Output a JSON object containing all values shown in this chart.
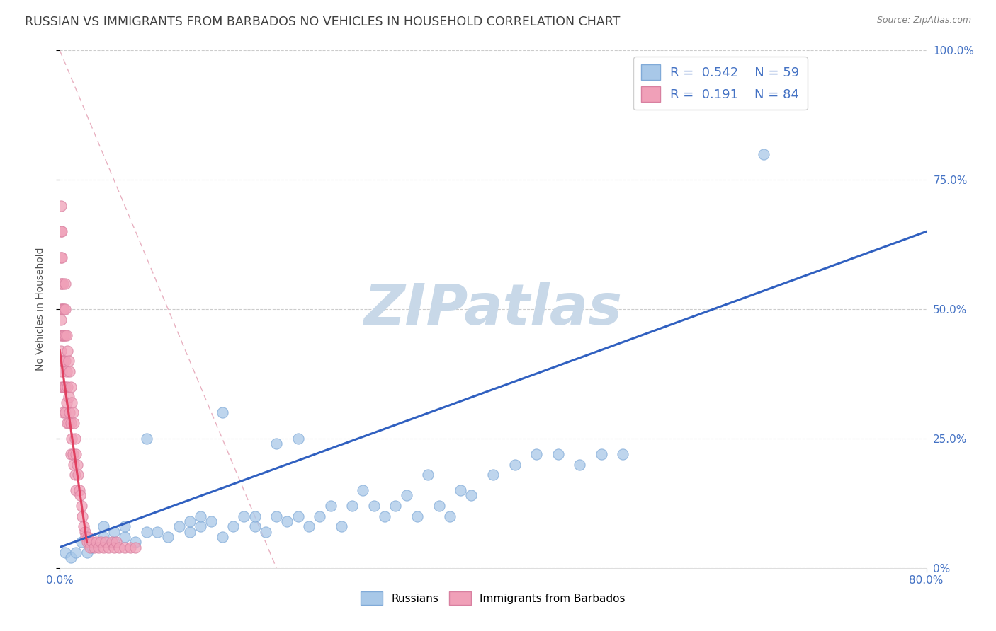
{
  "title": "RUSSIAN VS IMMIGRANTS FROM BARBADOS NO VEHICLES IN HOUSEHOLD CORRELATION CHART",
  "source": "Source: ZipAtlas.com",
  "ylabel": "No Vehicles in Household",
  "xlim": [
    0,
    0.8
  ],
  "ylim": [
    0,
    1.0
  ],
  "legend_r1": "0.542",
  "legend_n1": "59",
  "legend_r2": "0.191",
  "legend_n2": "84",
  "color_russian": "#a8c8e8",
  "color_barbados": "#f0a0b8",
  "color_russian_line": "#3060c0",
  "color_barbados_line": "#e04060",
  "color_diag": "#e0b0c0",
  "watermark": "ZIPatlas",
  "watermark_color": "#c8d8e8",
  "blue_line_x0": 0.0,
  "blue_line_y0": 0.04,
  "blue_line_x1": 0.8,
  "blue_line_y1": 0.65,
  "pink_line_x0": 0.0,
  "pink_line_y0": 0.42,
  "pink_line_x1": 0.025,
  "pink_line_y1": 0.05,
  "blue_scatter_x": [
    0.005,
    0.01,
    0.015,
    0.02,
    0.025,
    0.03,
    0.04,
    0.04,
    0.05,
    0.05,
    0.06,
    0.06,
    0.07,
    0.08,
    0.08,
    0.09,
    0.1,
    0.11,
    0.12,
    0.12,
    0.13,
    0.13,
    0.14,
    0.15,
    0.15,
    0.16,
    0.17,
    0.18,
    0.18,
    0.19,
    0.2,
    0.2,
    0.21,
    0.22,
    0.22,
    0.23,
    0.24,
    0.25,
    0.26,
    0.27,
    0.28,
    0.29,
    0.3,
    0.31,
    0.32,
    0.33,
    0.34,
    0.35,
    0.36,
    0.37,
    0.38,
    0.4,
    0.42,
    0.44,
    0.46,
    0.48,
    0.5,
    0.52,
    0.65
  ],
  "blue_scatter_y": [
    0.03,
    0.02,
    0.03,
    0.05,
    0.03,
    0.04,
    0.06,
    0.08,
    0.05,
    0.07,
    0.06,
    0.08,
    0.05,
    0.07,
    0.25,
    0.07,
    0.06,
    0.08,
    0.07,
    0.09,
    0.08,
    0.1,
    0.09,
    0.06,
    0.3,
    0.08,
    0.1,
    0.08,
    0.1,
    0.07,
    0.1,
    0.24,
    0.09,
    0.1,
    0.25,
    0.08,
    0.1,
    0.12,
    0.08,
    0.12,
    0.15,
    0.12,
    0.1,
    0.12,
    0.14,
    0.1,
    0.18,
    0.12,
    0.1,
    0.15,
    0.14,
    0.18,
    0.2,
    0.22,
    0.22,
    0.2,
    0.22,
    0.22,
    0.8
  ],
  "pink_scatter_x": [
    0.001,
    0.001,
    0.001,
    0.001,
    0.001,
    0.001,
    0.001,
    0.001,
    0.001,
    0.002,
    0.002,
    0.002,
    0.002,
    0.002,
    0.002,
    0.002,
    0.003,
    0.003,
    0.003,
    0.003,
    0.003,
    0.003,
    0.004,
    0.004,
    0.004,
    0.004,
    0.005,
    0.005,
    0.005,
    0.005,
    0.005,
    0.005,
    0.006,
    0.006,
    0.006,
    0.007,
    0.007,
    0.007,
    0.008,
    0.008,
    0.008,
    0.009,
    0.009,
    0.01,
    0.01,
    0.01,
    0.011,
    0.011,
    0.012,
    0.012,
    0.013,
    0.013,
    0.014,
    0.014,
    0.015,
    0.015,
    0.016,
    0.017,
    0.018,
    0.019,
    0.02,
    0.021,
    0.022,
    0.023,
    0.024,
    0.025,
    0.026,
    0.027,
    0.028,
    0.03,
    0.032,
    0.034,
    0.036,
    0.038,
    0.04,
    0.042,
    0.045,
    0.048,
    0.05,
    0.052,
    0.055,
    0.06,
    0.065,
    0.07
  ],
  "pink_scatter_y": [
    0.55,
    0.6,
    0.65,
    0.5,
    0.45,
    0.4,
    0.7,
    0.48,
    0.42,
    0.6,
    0.55,
    0.5,
    0.45,
    0.38,
    0.65,
    0.35,
    0.55,
    0.5,
    0.45,
    0.4,
    0.35,
    0.3,
    0.5,
    0.45,
    0.4,
    0.35,
    0.55,
    0.5,
    0.45,
    0.4,
    0.35,
    0.3,
    0.45,
    0.38,
    0.32,
    0.42,
    0.35,
    0.28,
    0.4,
    0.33,
    0.28,
    0.38,
    0.3,
    0.35,
    0.28,
    0.22,
    0.32,
    0.25,
    0.3,
    0.22,
    0.28,
    0.2,
    0.25,
    0.18,
    0.22,
    0.15,
    0.2,
    0.18,
    0.15,
    0.14,
    0.12,
    0.1,
    0.08,
    0.07,
    0.06,
    0.05,
    0.06,
    0.05,
    0.04,
    0.05,
    0.04,
    0.05,
    0.04,
    0.05,
    0.04,
    0.05,
    0.04,
    0.05,
    0.04,
    0.05,
    0.04,
    0.04,
    0.04,
    0.04
  ]
}
